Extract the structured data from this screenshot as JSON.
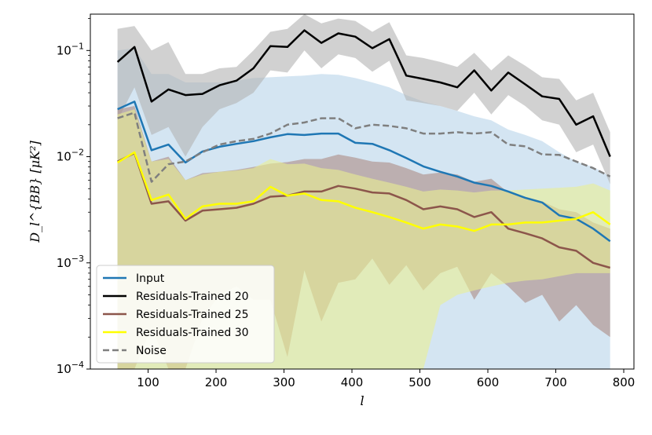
{
  "chart_data": {
    "type": "line",
    "title": "",
    "xlabel": "l",
    "ylabel": "D_l^{BB} [μK²]",
    "xlim": [
      15,
      815
    ],
    "ylim": [
      0.0001,
      0.22
    ],
    "yscale": "log",
    "x_ticks": [
      100,
      200,
      300,
      400,
      500,
      600,
      700,
      800
    ],
    "x_tick_labels": [
      "100",
      "200",
      "300",
      "400",
      "500",
      "600",
      "700",
      "800"
    ],
    "y_ticks": [
      0.0001,
      0.001,
      0.01,
      0.1
    ],
    "y_tick_labels": [
      {
        "base": "10",
        "exp": "−4"
      },
      {
        "base": "10",
        "exp": "−3"
      },
      {
        "base": "10",
        "exp": "−2"
      },
      {
        "base": "10",
        "exp": "−1"
      }
    ],
    "legend_position": "lower-left",
    "series": [
      {
        "name": "Input",
        "color": "#1f77b4",
        "style": "solid",
        "x": [
          55,
          80,
          105,
          130,
          155,
          180,
          205,
          230,
          255,
          280,
          305,
          330,
          355,
          380,
          405,
          430,
          455,
          480,
          505,
          530,
          555,
          580,
          605,
          630,
          655,
          680,
          705,
          730,
          755,
          780
        ],
        "values": [
          0.028,
          0.033,
          0.0115,
          0.013,
          0.0088,
          0.0112,
          0.0124,
          0.0132,
          0.014,
          0.0152,
          0.0163,
          0.016,
          0.0165,
          0.0165,
          0.0135,
          0.0132,
          0.0115,
          0.0097,
          0.0081,
          0.0072,
          0.0065,
          0.0057,
          0.0053,
          0.0047,
          0.0041,
          0.0037,
          0.0028,
          0.0026,
          0.0021,
          0.0016
        ],
        "band_upper": [
          0.1,
          0.105,
          0.06,
          0.06,
          0.05,
          0.05,
          0.05,
          0.052,
          0.055,
          0.056,
          0.057,
          0.058,
          0.06,
          0.059,
          0.055,
          0.05,
          0.045,
          0.038,
          0.033,
          0.03,
          0.027,
          0.024,
          0.022,
          0.018,
          0.016,
          0.014,
          0.011,
          0.009,
          0.008,
          0.0065
        ],
        "band_lower": [
          0.0001,
          0.0001,
          0.0001,
          0.0001,
          0.0001,
          0.0001,
          0.0001,
          0.0001,
          0.0001,
          0.0001,
          0.0001,
          0.0001,
          0.0001,
          0.0001,
          0.0001,
          0.0001,
          0.0001,
          0.0001,
          0.0001,
          0.0001,
          0.0001,
          0.0001,
          0.0001,
          0.0001,
          0.0001,
          0.0001,
          0.0001,
          0.0001,
          0.0001,
          0.0001
        ],
        "band_color": "#b8d3ea"
      },
      {
        "name": "Residuals-Trained 20",
        "color": "#000000",
        "style": "solid",
        "x": [
          55,
          80,
          105,
          130,
          155,
          180,
          205,
          230,
          255,
          280,
          305,
          330,
          355,
          380,
          405,
          430,
          455,
          480,
          505,
          530,
          555,
          580,
          605,
          630,
          655,
          680,
          705,
          730,
          755,
          780
        ],
        "values": [
          0.078,
          0.108,
          0.033,
          0.043,
          0.038,
          0.039,
          0.047,
          0.052,
          0.068,
          0.11,
          0.108,
          0.155,
          0.118,
          0.145,
          0.135,
          0.105,
          0.128,
          0.058,
          0.054,
          0.05,
          0.045,
          0.065,
          0.042,
          0.062,
          0.048,
          0.037,
          0.035,
          0.02,
          0.024,
          0.01
        ],
        "band_upper": [
          0.16,
          0.17,
          0.1,
          0.12,
          0.06,
          0.06,
          0.068,
          0.07,
          0.1,
          0.15,
          0.16,
          0.22,
          0.18,
          0.2,
          0.19,
          0.15,
          0.185,
          0.09,
          0.085,
          0.078,
          0.07,
          0.095,
          0.065,
          0.09,
          0.072,
          0.056,
          0.054,
          0.034,
          0.04,
          0.017
        ],
        "band_lower": [
          0.022,
          0.045,
          0.016,
          0.019,
          0.01,
          0.019,
          0.028,
          0.032,
          0.04,
          0.065,
          0.062,
          0.1,
          0.068,
          0.092,
          0.085,
          0.063,
          0.08,
          0.034,
          0.032,
          0.03,
          0.027,
          0.04,
          0.025,
          0.038,
          0.03,
          0.022,
          0.02,
          0.011,
          0.013,
          0.0055
        ],
        "band_color": "#b3b3b3"
      },
      {
        "name": "Residuals-Trained 25",
        "color": "#8c564b",
        "style": "solid",
        "x": [
          55,
          80,
          105,
          130,
          155,
          180,
          205,
          230,
          255,
          280,
          305,
          330,
          355,
          380,
          405,
          430,
          455,
          480,
          505,
          530,
          555,
          580,
          605,
          630,
          655,
          680,
          705,
          730,
          755,
          780
        ],
        "values": [
          0.009,
          0.0108,
          0.0036,
          0.0038,
          0.0025,
          0.0031,
          0.0032,
          0.0033,
          0.0036,
          0.0042,
          0.0043,
          0.0047,
          0.0047,
          0.0053,
          0.005,
          0.0046,
          0.0045,
          0.0039,
          0.0032,
          0.0034,
          0.0032,
          0.0027,
          0.003,
          0.0021,
          0.0019,
          0.0017,
          0.0014,
          0.0013,
          0.001,
          0.0009
        ],
        "band_upper": [
          0.028,
          0.03,
          0.009,
          0.01,
          0.006,
          0.007,
          0.0072,
          0.0075,
          0.008,
          0.0086,
          0.0089,
          0.0095,
          0.0095,
          0.0105,
          0.0098,
          0.009,
          0.0088,
          0.0078,
          0.0068,
          0.0071,
          0.0068,
          0.0058,
          0.0062,
          0.0046,
          0.0042,
          0.0038,
          0.0032,
          0.003,
          0.0024,
          0.0021
        ],
        "band_lower": [
          0.0001,
          0.0001,
          0.00025,
          0.0001,
          0.0001,
          0.0003,
          0.0005,
          0.0006,
          0.00045,
          0.00045,
          0.00013,
          0.00085,
          0.00028,
          0.00065,
          0.0007,
          0.0011,
          0.00062,
          0.00095,
          0.00055,
          0.0008,
          0.00092,
          0.00045,
          0.0008,
          0.0006,
          0.00042,
          0.0005,
          0.00028,
          0.0004,
          0.00026,
          0.0002
        ],
        "band_color": "#ab8a84"
      },
      {
        "name": "Residuals-Trained 30",
        "color": "#ffff00",
        "style": "solid",
        "x": [
          55,
          80,
          105,
          130,
          155,
          180,
          205,
          230,
          255,
          280,
          305,
          330,
          355,
          380,
          405,
          430,
          455,
          480,
          505,
          530,
          555,
          580,
          605,
          630,
          655,
          680,
          705,
          730,
          755,
          780
        ],
        "values": [
          0.0088,
          0.011,
          0.0039,
          0.0044,
          0.0026,
          0.0034,
          0.0036,
          0.0036,
          0.0038,
          0.0052,
          0.0043,
          0.0045,
          0.0039,
          0.0038,
          0.0033,
          0.003,
          0.0027,
          0.0024,
          0.0021,
          0.0023,
          0.0022,
          0.002,
          0.0023,
          0.0023,
          0.0024,
          0.0024,
          0.0025,
          0.0026,
          0.003,
          0.0023
        ],
        "band_upper": [
          0.025,
          0.028,
          0.009,
          0.0095,
          0.006,
          0.0068,
          0.0072,
          0.0074,
          0.0078,
          0.0095,
          0.0085,
          0.0086,
          0.0078,
          0.0075,
          0.0068,
          0.0062,
          0.0057,
          0.0052,
          0.0047,
          0.0049,
          0.0048,
          0.0046,
          0.0048,
          0.0048,
          0.0049,
          0.005,
          0.0051,
          0.0052,
          0.0056,
          0.0048
        ],
        "band_lower": [
          0.0001,
          0.0001,
          0.0001,
          0.0001,
          0.0001,
          0.0001,
          0.0001,
          0.0001,
          0.0001,
          0.0001,
          0.0001,
          0.0001,
          0.0001,
          0.0001,
          0.0001,
          0.0001,
          0.0001,
          0.0001,
          0.0001,
          0.0004,
          0.0005,
          0.00055,
          0.0006,
          0.00065,
          0.00068,
          0.0007,
          0.00075,
          0.0008,
          0.0008,
          0.0008
        ],
        "band_color": "#eaee93"
      },
      {
        "name": "Noise",
        "color": "#7f7f7f",
        "style": "dashed",
        "x": [
          55,
          80,
          105,
          130,
          155,
          180,
          205,
          230,
          255,
          280,
          305,
          330,
          355,
          380,
          405,
          430,
          455,
          480,
          505,
          530,
          555,
          580,
          605,
          630,
          655,
          680,
          705,
          730,
          755,
          780
        ],
        "values": [
          0.023,
          0.026,
          0.0058,
          0.0085,
          0.009,
          0.011,
          0.013,
          0.014,
          0.0147,
          0.0165,
          0.02,
          0.021,
          0.023,
          0.023,
          0.0185,
          0.02,
          0.0195,
          0.0185,
          0.0165,
          0.0165,
          0.017,
          0.0165,
          0.017,
          0.013,
          0.0125,
          0.0105,
          0.0104,
          0.009,
          0.0078,
          0.0065
        ]
      }
    ]
  }
}
